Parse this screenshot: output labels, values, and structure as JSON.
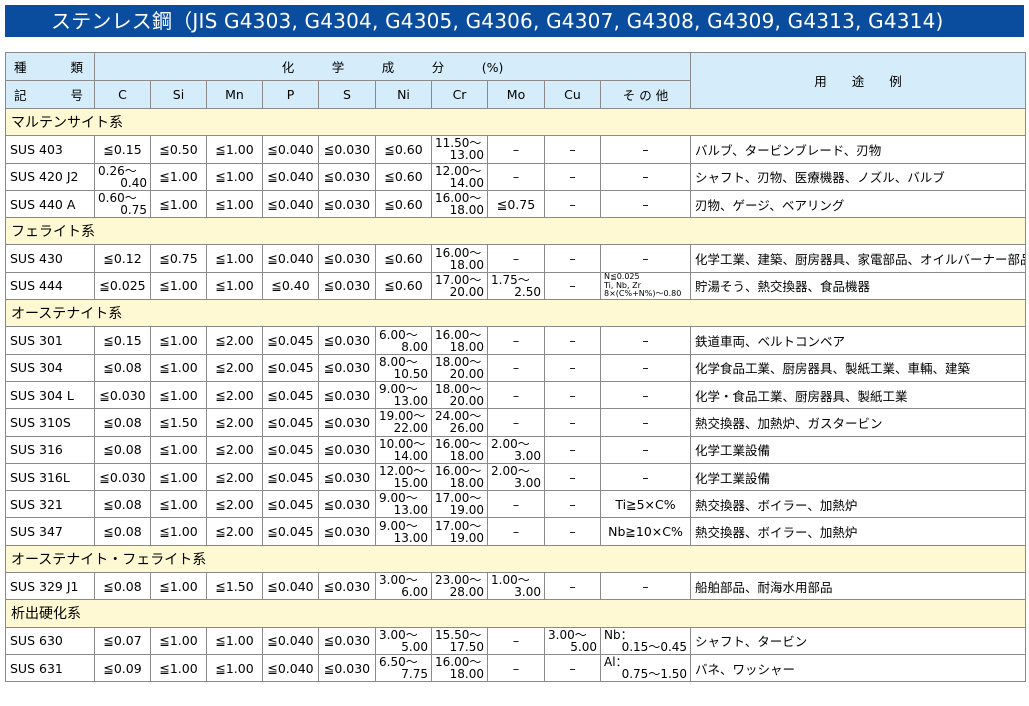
{
  "title": "ステンレス鋼（JIS G4303, G4304, G4305, G4306, G4307, G4308, G4309, G4313, G4314)",
  "header": {
    "kind_1": "種",
    "kind_2": "類",
    "code_1": "記",
    "code_2": "号",
    "composition": "化　　　学　　　成　　　分　　　(%)",
    "usage": "用　　途　　例",
    "elements": [
      "C",
      "Si",
      "Mn",
      "P",
      "S",
      "Ni",
      "Cr",
      "Mo",
      "Cu",
      "そ の 他"
    ]
  },
  "colors": {
    "title_bg": "#0a4d9e",
    "header_bg": "#d5ecfa",
    "group_bg": "#fff9d3"
  },
  "rows": [
    {
      "group": "マルテンサイト系"
    },
    {
      "name": "SUS 403",
      "v": [
        "≦0.15",
        "≦0.50",
        "≦1.00",
        "≦0.040",
        "≦0.030",
        "≦0.60",
        [
          "11.50〜",
          "13.00"
        ],
        "–",
        "–",
        "–"
      ],
      "use": "バルブ、タービンブレード、刃物"
    },
    {
      "name": "SUS 420 J2",
      "v": [
        [
          "0.26〜",
          "0.40"
        ],
        "≦1.00",
        "≦1.00",
        "≦0.040",
        "≦0.030",
        "≦0.60",
        [
          "12.00〜",
          "14.00"
        ],
        "–",
        "–",
        "–"
      ],
      "use": "シャフト、刃物、医療機器、ノズル、バルブ"
    },
    {
      "name": "SUS 440 A",
      "v": [
        [
          "0.60〜",
          "0.75"
        ],
        "≦1.00",
        "≦1.00",
        "≦0.040",
        "≦0.030",
        "≦0.60",
        [
          "16.00〜",
          "18.00"
        ],
        "≦0.75",
        "–",
        "–"
      ],
      "use": "刃物、ゲージ、ベアリング"
    },
    {
      "group": "フェライト系"
    },
    {
      "name": "SUS 430",
      "v": [
        "≦0.12",
        "≦0.75",
        "≦1.00",
        "≦0.040",
        "≦0.030",
        "≦0.60",
        [
          "16.00〜",
          "18.00"
        ],
        "–",
        "–",
        "–"
      ],
      "use": "化学工業、建築、厨房器具、家電部品、オイルバーナー部品"
    },
    {
      "name": "SUS 444",
      "v": [
        "≦0.025",
        "≦1.00",
        "≦1.00",
        "≦0.40",
        "≦0.030",
        "≦0.60",
        [
          "17.00〜",
          "20.00"
        ],
        [
          "1.75〜",
          "2.50"
        ],
        "–",
        [
          "N≦0.025",
          "Ti, Nb, Zr",
          "8×(C%+N%)〜0.80"
        ]
      ],
      "use": "貯湯そう、熱交換器、食品機器"
    },
    {
      "group": "オーステナイト系"
    },
    {
      "name": "SUS 301",
      "v": [
        "≦0.15",
        "≦1.00",
        "≦2.00",
        "≦0.045",
        "≦0.030",
        [
          "6.00〜",
          "8.00"
        ],
        [
          "16.00〜",
          "18.00"
        ],
        "–",
        "–",
        "–"
      ],
      "use": "鉄道車両、ベルトコンベア"
    },
    {
      "name": "SUS 304",
      "v": [
        "≦0.08",
        "≦1.00",
        "≦2.00",
        "≦0.045",
        "≦0.030",
        [
          "8.00〜",
          "10.50"
        ],
        [
          "18.00〜",
          "20.00"
        ],
        "–",
        "–",
        "–"
      ],
      "use": "化学食品工業、厨房器具、製紙工業、車輛、建築"
    },
    {
      "name": "SUS 304 L",
      "v": [
        "≦0.030",
        "≦1.00",
        "≦2.00",
        "≦0.045",
        "≦0.030",
        [
          "9.00〜",
          "13.00"
        ],
        [
          "18.00〜",
          "20.00"
        ],
        "–",
        "–",
        "–"
      ],
      "use": "化学・食品工業、厨房器具、製紙工業"
    },
    {
      "name": "SUS 310S",
      "v": [
        "≦0.08",
        "≦1.50",
        "≦2.00",
        "≦0.045",
        "≦0.030",
        [
          "19.00〜",
          "22.00"
        ],
        [
          "24.00〜",
          "26.00"
        ],
        "–",
        "–",
        "–"
      ],
      "use": "熱交換器、加熱炉、ガスタービン"
    },
    {
      "name": "SUS 316",
      "v": [
        "≦0.08",
        "≦1.00",
        "≦2.00",
        "≦0.045",
        "≦0.030",
        [
          "10.00〜",
          "14.00"
        ],
        [
          "16.00〜",
          "18.00"
        ],
        [
          "2.00〜",
          "3.00"
        ],
        "–",
        "–"
      ],
      "use": "化学工業設備"
    },
    {
      "name": "SUS 316L",
      "v": [
        "≦0.030",
        "≦1.00",
        "≦2.00",
        "≦0.045",
        "≦0.030",
        [
          "12.00〜",
          "15.00"
        ],
        [
          "16.00〜",
          "18.00"
        ],
        [
          "2.00〜",
          "3.00"
        ],
        "–",
        "–"
      ],
      "use": "化学工業設備"
    },
    {
      "name": "SUS 321",
      "v": [
        "≦0.08",
        "≦1.00",
        "≦2.00",
        "≦0.045",
        "≦0.030",
        [
          "9.00〜",
          "13.00"
        ],
        [
          "17.00〜",
          "19.00"
        ],
        "–",
        "–",
        "Ti≧5×C%"
      ],
      "use": "熱交換器、ボイラー、加熱炉"
    },
    {
      "name": "SUS 347",
      "v": [
        "≦0.08",
        "≦1.00",
        "≦2.00",
        "≦0.045",
        "≦0.030",
        [
          "9.00〜",
          "13.00"
        ],
        [
          "17.00〜",
          "19.00"
        ],
        "–",
        "–",
        "Nb≧10×C%"
      ],
      "use": "熱交換器、ボイラー、加熱炉"
    },
    {
      "group": "オーステナイト・フェライト系"
    },
    {
      "name": "SUS 329 J1",
      "v": [
        "≦0.08",
        "≦1.00",
        "≦1.50",
        "≦0.040",
        "≦0.030",
        [
          "3.00〜",
          "6.00"
        ],
        [
          "23.00〜",
          "28.00"
        ],
        [
          "1.00〜",
          "3.00"
        ],
        "–",
        "–"
      ],
      "use": "船舶部品、耐海水用部品"
    },
    {
      "group": "析出硬化系"
    },
    {
      "name": "SUS 630",
      "v": [
        "≦0.07",
        "≦1.00",
        "≦1.00",
        "≦0.040",
        "≦0.030",
        [
          "3.00〜",
          "5.00"
        ],
        [
          "15.50〜",
          "17.50"
        ],
        "–",
        [
          "3.00〜",
          "5.00"
        ],
        [
          "Nb：",
          "0.15〜0.45"
        ]
      ],
      "use": "シャフト、タービン"
    },
    {
      "name": "SUS 631",
      "v": [
        "≦0.09",
        "≦1.00",
        "≦1.00",
        "≦0.040",
        "≦0.030",
        [
          "6.50〜",
          "7.75"
        ],
        [
          "16.00〜",
          "18.00"
        ],
        "–",
        "–",
        [
          "Al：",
          "0.75〜1.50"
        ]
      ],
      "use": "バネ、ワッシャー"
    }
  ]
}
